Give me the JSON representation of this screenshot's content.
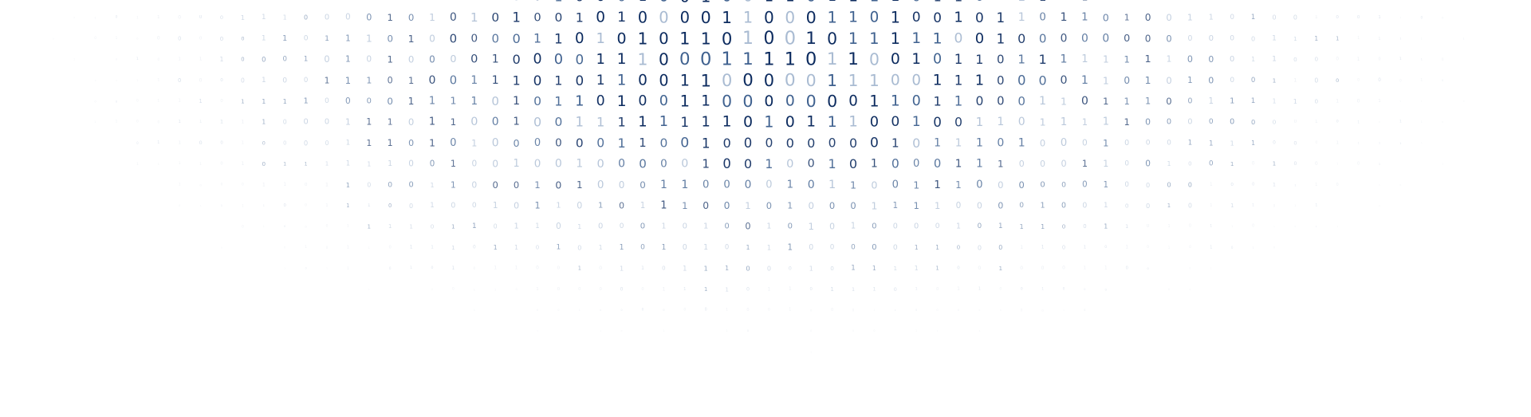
{
  "artwork": {
    "type": "binary-digit-halftone",
    "glyphs": [
      "0",
      "1"
    ],
    "colors": {
      "background": "#ffffff",
      "digit_dark": "#0b2a5e",
      "digit_mid": "#3f618f",
      "digit_light": "#a9bbd2",
      "digit_faint": "#d3dbe6"
    }
  }
}
